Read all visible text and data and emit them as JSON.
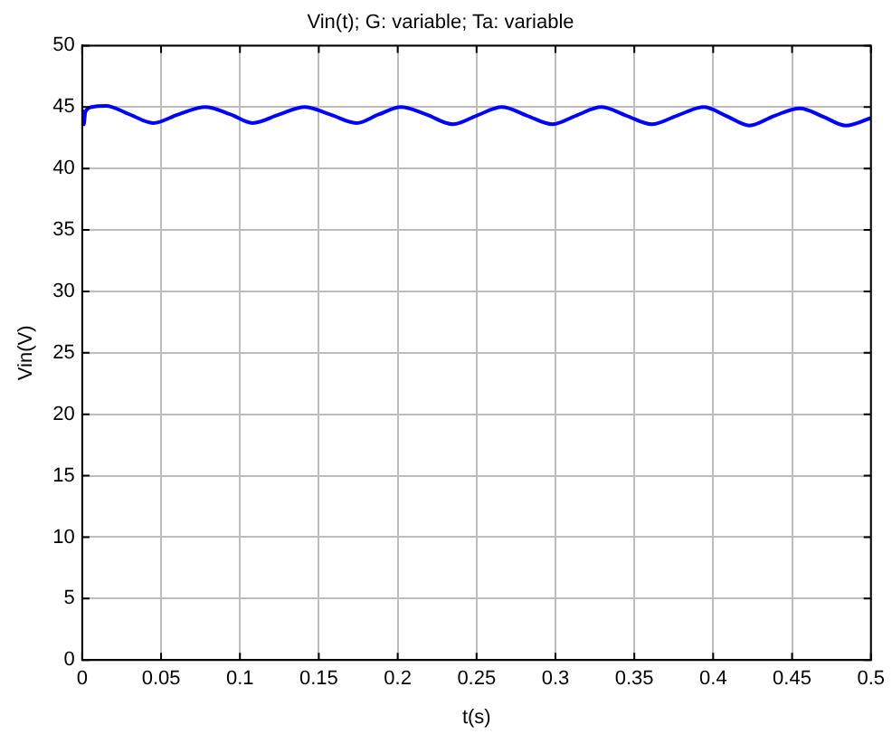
{
  "chart_data": {
    "type": "line",
    "title": "Vin(t); G: variable; Ta: variable",
    "xlabel": "t(s)",
    "ylabel": "Vin(V)",
    "x": [
      0,
      0.001,
      0.002,
      0.006,
      0.015,
      0.03,
      0.045,
      0.061,
      0.078,
      0.094,
      0.108,
      0.125,
      0.141,
      0.157,
      0.174,
      0.188,
      0.202,
      0.218,
      0.235,
      0.25,
      0.266,
      0.282,
      0.298,
      0.313,
      0.329,
      0.345,
      0.361,
      0.377,
      0.394,
      0.408,
      0.423,
      0.439,
      0.455,
      0.47,
      0.484,
      0.5
    ],
    "series": [
      {
        "color": "#0000ff",
        "values": [
          44.8,
          43.6,
          44.6,
          45.0,
          45.1,
          44.4,
          43.7,
          44.4,
          45.0,
          44.4,
          43.7,
          44.4,
          45.0,
          44.4,
          43.7,
          44.4,
          45.0,
          44.4,
          43.6,
          44.3,
          45.0,
          44.3,
          43.6,
          44.3,
          45.0,
          44.3,
          43.6,
          44.3,
          45.0,
          44.3,
          43.5,
          44.3,
          44.9,
          44.2,
          43.5,
          44.1
        ]
      }
    ],
    "xlim": [
      0,
      0.5
    ],
    "xticks": [
      0,
      0.05,
      0.1,
      0.15,
      0.2,
      0.25,
      0.3,
      0.35,
      0.4,
      0.45,
      0.5
    ],
    "ylim": [
      0,
      50
    ],
    "yticks": [
      0,
      5,
      10,
      15,
      20,
      25,
      30,
      35,
      40,
      45,
      50
    ],
    "grid": true,
    "legend": false,
    "marker": "none",
    "line_style": "solid"
  }
}
